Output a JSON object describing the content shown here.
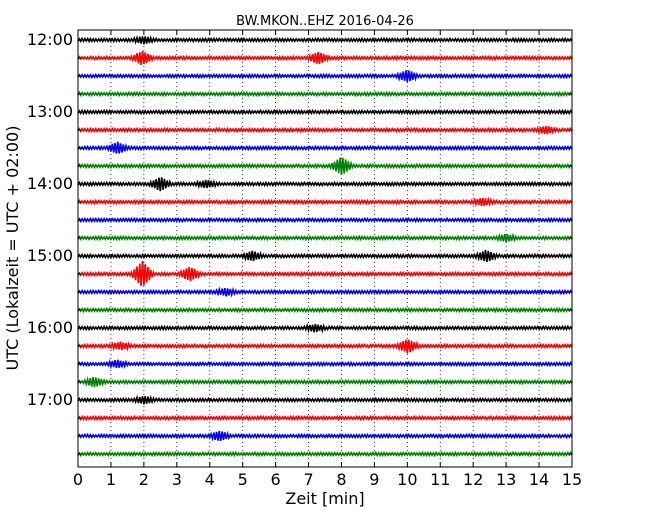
{
  "chart_data": {
    "type": "line",
    "title": "BW.MKON..EHZ 2016-04-26",
    "xlabel": "Zeit  [min]",
    "ylabel": "UTC (Lokalzeit = UTC + 02:00)",
    "xlim": [
      0,
      15
    ],
    "x_ticks": [
      "0",
      "1",
      "2",
      "3",
      "4",
      "5",
      "6",
      "7",
      "8",
      "9",
      "10",
      "11",
      "12",
      "13",
      "14",
      "15"
    ],
    "y_tick_labels": [
      "12:00",
      "13:00",
      "14:00",
      "15:00",
      "16:00",
      "17:00"
    ],
    "grid": "vertical-dotted",
    "row_interval_min": 15,
    "series_colors": [
      "#000000",
      "#ff0000",
      "#0000ff",
      "#008000"
    ],
    "traces": [
      {
        "start": "12:00",
        "events": [
          {
            "t": 2.0,
            "amp": 0.3
          }
        ]
      },
      {
        "start": "12:15",
        "events": [
          {
            "t": 1.95,
            "amp": 0.6
          },
          {
            "t": 7.3,
            "amp": 0.5
          }
        ]
      },
      {
        "start": "12:30",
        "events": [
          {
            "t": 10.0,
            "amp": 0.5
          }
        ]
      },
      {
        "start": "12:45",
        "events": []
      },
      {
        "start": "13:00",
        "events": []
      },
      {
        "start": "13:15",
        "events": [
          {
            "t": 14.2,
            "amp": 0.3
          }
        ]
      },
      {
        "start": "13:30",
        "events": [
          {
            "t": 1.2,
            "amp": 0.5
          }
        ]
      },
      {
        "start": "13:45",
        "events": [
          {
            "t": 8.0,
            "amp": 0.8
          }
        ]
      },
      {
        "start": "14:00",
        "events": [
          {
            "t": 2.5,
            "amp": 0.6
          },
          {
            "t": 3.9,
            "amp": 0.3
          }
        ]
      },
      {
        "start": "14:15",
        "events": [
          {
            "t": 12.3,
            "amp": 0.3
          }
        ]
      },
      {
        "start": "14:30",
        "events": []
      },
      {
        "start": "14:45",
        "events": [
          {
            "t": 13.0,
            "amp": 0.3
          }
        ]
      },
      {
        "start": "15:00",
        "events": [
          {
            "t": 5.3,
            "amp": 0.4
          },
          {
            "t": 12.4,
            "amp": 0.5
          }
        ]
      },
      {
        "start": "15:15",
        "events": [
          {
            "t": 1.95,
            "amp": 1.2
          },
          {
            "t": 3.4,
            "amp": 0.6
          }
        ]
      },
      {
        "start": "15:30",
        "events": [
          {
            "t": 4.5,
            "amp": 0.3
          }
        ]
      },
      {
        "start": "15:45",
        "events": []
      },
      {
        "start": "16:00",
        "events": [
          {
            "t": 7.2,
            "amp": 0.3
          }
        ]
      },
      {
        "start": "16:15",
        "events": [
          {
            "t": 10.0,
            "amp": 0.6
          },
          {
            "t": 1.3,
            "amp": 0.3
          }
        ]
      },
      {
        "start": "16:30",
        "events": [
          {
            "t": 1.2,
            "amp": 0.3
          }
        ]
      },
      {
        "start": "16:45",
        "events": [
          {
            "t": 0.5,
            "amp": 0.4
          }
        ]
      },
      {
        "start": "17:00",
        "events": [
          {
            "t": 2.0,
            "amp": 0.3
          }
        ]
      },
      {
        "start": "17:15",
        "events": []
      },
      {
        "start": "17:30",
        "events": [
          {
            "t": 4.3,
            "amp": 0.4
          }
        ]
      },
      {
        "start": "17:45",
        "events": []
      }
    ]
  }
}
